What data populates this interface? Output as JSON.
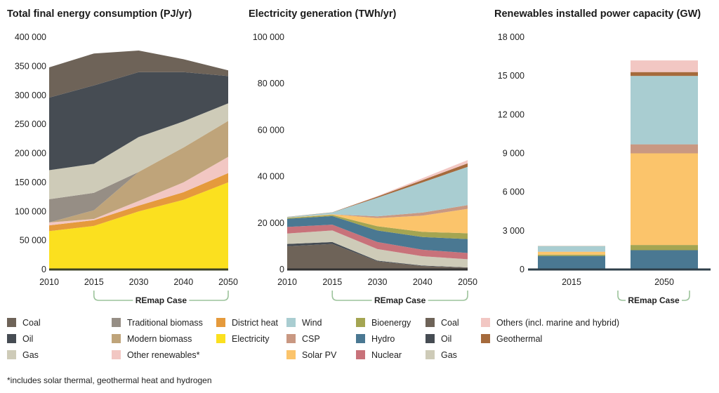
{
  "footnote": "*includes solar thermal, geothermal heat and hydrogen",
  "remap_label": "REmap Case",
  "chart_data": [
    {
      "id": "tfec",
      "type": "area",
      "stacked": true,
      "title": "Total final energy consumption (PJ/yr)",
      "x": [
        "2010",
        "2015",
        "2030",
        "2040",
        "2050"
      ],
      "ylim": [
        0,
        400000
      ],
      "yticks": [
        0,
        50000,
        100000,
        150000,
        200000,
        250000,
        300000,
        350000,
        400000
      ],
      "ytick_labels": [
        "0",
        "50 000",
        "100 000",
        "150 000",
        "200 000",
        "250 000",
        "300 000",
        "350 000",
        "400 000"
      ],
      "grid": false,
      "series": [
        {
          "name": "Electricity",
          "color": "#fbe01f",
          "values": [
            66000,
            75000,
            100000,
            120000,
            150000
          ]
        },
        {
          "name": "District heat",
          "color": "#e59a3c",
          "values": [
            10000,
            10000,
            10000,
            13000,
            16000
          ]
        },
        {
          "name": "Other renewables*",
          "color": "#f2c7c3",
          "values": [
            5000,
            2000,
            8000,
            17000,
            28000
          ]
        },
        {
          "name": "Modern biomass",
          "color": "#bfa47a",
          "values": [
            0,
            15000,
            50000,
            60000,
            62000
          ]
        },
        {
          "name": "Traditional biomass",
          "color": "#968e85",
          "values": [
            40000,
            30000,
            0,
            0,
            0
          ]
        },
        {
          "name": "Gas",
          "color": "#cecbb8",
          "values": [
            50000,
            50000,
            60000,
            45000,
            30000
          ]
        },
        {
          "name": "Oil",
          "color": "#464c53",
          "values": [
            125000,
            135000,
            112000,
            85000,
            47000
          ]
        },
        {
          "name": "Coal",
          "color": "#6e6358",
          "values": [
            52000,
            55000,
            37000,
            22000,
            10000
          ]
        }
      ]
    },
    {
      "id": "elec",
      "type": "area",
      "stacked": true,
      "title": "Electricity generation (TWh/yr)",
      "x": [
        "2010",
        "2015",
        "2030",
        "2040",
        "2050"
      ],
      "ylim": [
        0,
        100000
      ],
      "yticks": [
        0,
        20000,
        40000,
        60000,
        80000,
        100000
      ],
      "ytick_labels": [
        "0",
        "20 000",
        "40 000",
        "60 000",
        "80 000",
        "100 000"
      ],
      "grid": false,
      "series": [
        {
          "name": "Coal",
          "color": "#6e6358",
          "values": [
            10000,
            11000,
            3500,
            1500,
            800
          ]
        },
        {
          "name": "Oil",
          "color": "#464c53",
          "values": [
            1000,
            800,
            300,
            200,
            100
          ]
        },
        {
          "name": "Gas",
          "color": "#cecbb8",
          "values": [
            4500,
            5000,
            5000,
            4000,
            3500
          ]
        },
        {
          "name": "Nuclear",
          "color": "#c8727a",
          "values": [
            2800,
            2500,
            3000,
            2800,
            2700
          ]
        },
        {
          "name": "Hydro",
          "color": "#4a7892",
          "values": [
            3500,
            3700,
            5000,
            5500,
            6000
          ]
        },
        {
          "name": "Bioenergy",
          "color": "#a4a552",
          "values": [
            400,
            500,
            1800,
            2200,
            2500
          ]
        },
        {
          "name": "Solar PV",
          "color": "#fbc46b",
          "values": [
            100,
            250,
            3500,
            7000,
            10500
          ]
        },
        {
          "name": "CSP",
          "color": "#c99882",
          "values": [
            0,
            0,
            800,
            1300,
            1600
          ]
        },
        {
          "name": "Wind",
          "color": "#a9cdd1",
          "values": [
            300,
            800,
            8000,
            13000,
            16500
          ]
        },
        {
          "name": "Geothermal",
          "color": "#a56a3c",
          "values": [
            70,
            80,
            500,
            1000,
            1500
          ]
        },
        {
          "name": "Others (incl. marine and hybrid)",
          "color": "#f2c7c3",
          "values": [
            0,
            0,
            200,
            800,
            1400
          ]
        }
      ]
    },
    {
      "id": "cap",
      "type": "bar",
      "stacked": true,
      "title": "Renewables installed power capacity (GW)",
      "categories": [
        "2015",
        "2050"
      ],
      "ylim": [
        0,
        18000
      ],
      "yticks": [
        0,
        3000,
        6000,
        9000,
        12000,
        15000,
        18000
      ],
      "ytick_labels": [
        "0",
        "3 000",
        "6 000",
        "9 000",
        "12 000",
        "15 000",
        "18 000"
      ],
      "grid": false,
      "series": [
        {
          "name": "Hydro",
          "color": "#4a7892",
          "values": [
            1050,
            1500
          ]
        },
        {
          "name": "Bioenergy",
          "color": "#a4a552",
          "values": [
            100,
            400
          ]
        },
        {
          "name": "Solar PV",
          "color": "#fbc46b",
          "values": [
            220,
            7100
          ]
        },
        {
          "name": "CSP",
          "color": "#c99882",
          "values": [
            10,
            700
          ]
        },
        {
          "name": "Wind",
          "color": "#a9cdd1",
          "values": [
            430,
            5300
          ]
        },
        {
          "name": "Geothermal",
          "color": "#a56a3c",
          "values": [
            10,
            300
          ]
        },
        {
          "name": "Others (incl. marine and hybrid)",
          "color": "#f2c7c3",
          "values": [
            0,
            900
          ]
        }
      ]
    }
  ],
  "legends": {
    "tfec": [
      "Coal",
      "Traditional biomass",
      "District heat",
      "Oil",
      "Modern biomass",
      "Electricity",
      "Gas",
      "Other renewables*"
    ],
    "elec": [
      "Wind",
      "Bioenergy",
      "Coal",
      "Others (incl. marine and hybrid)",
      "CSP",
      "Hydro",
      "Oil",
      "Geothermal",
      "Solar PV",
      "Nuclear",
      "Gas"
    ],
    "colors": {
      "Coal": "#6e6358",
      "Traditional biomass": "#968e85",
      "District heat": "#e59a3c",
      "Oil": "#464c53",
      "Modern biomass": "#bfa47a",
      "Electricity": "#fbe01f",
      "Gas": "#cecbb8",
      "Other renewables*": "#f2c7c3",
      "Wind": "#a9cdd1",
      "Bioenergy": "#a4a552",
      "Others (incl. marine and hybrid)": "#f2c7c3",
      "CSP": "#c99882",
      "Hydro": "#4a7892",
      "Geothermal": "#a56a3c",
      "Solar PV": "#fbc46b",
      "Nuclear": "#c8727a"
    }
  },
  "colors": {
    "axis": "#333333",
    "remap_bracket": "#9cc39b",
    "baseline_tfec": "#3b4226",
    "baseline_bar": "#2f3f4a"
  }
}
